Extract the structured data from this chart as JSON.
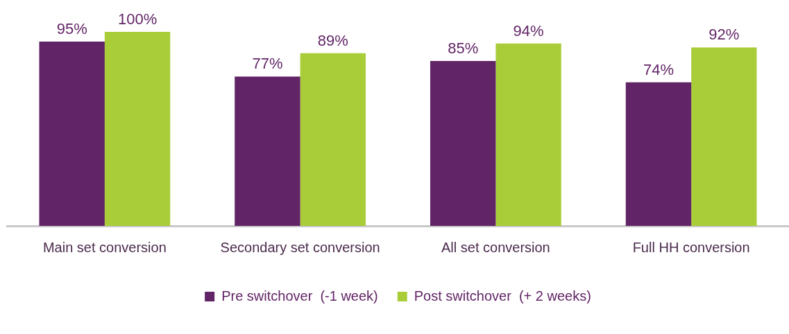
{
  "chart_data": {
    "type": "bar",
    "categories": [
      "Main set conversion",
      "Secondary set conversion",
      "All set conversion",
      "Full HH conversion"
    ],
    "series": [
      {
        "name": "Pre switchover  (-1 week)",
        "color": "#612466",
        "values": [
          95,
          77,
          85,
          74
        ],
        "value_labels": [
          "95%",
          "77%",
          "85%",
          "74%"
        ]
      },
      {
        "name": "Post switchover  (+ 2 weeks)",
        "color": "#a9cd38",
        "values": [
          100,
          89,
          94,
          92
        ],
        "value_labels": [
          "100%",
          "89%",
          "94%",
          "92%"
        ]
      }
    ],
    "legend": "bottom",
    "grid": false
  }
}
